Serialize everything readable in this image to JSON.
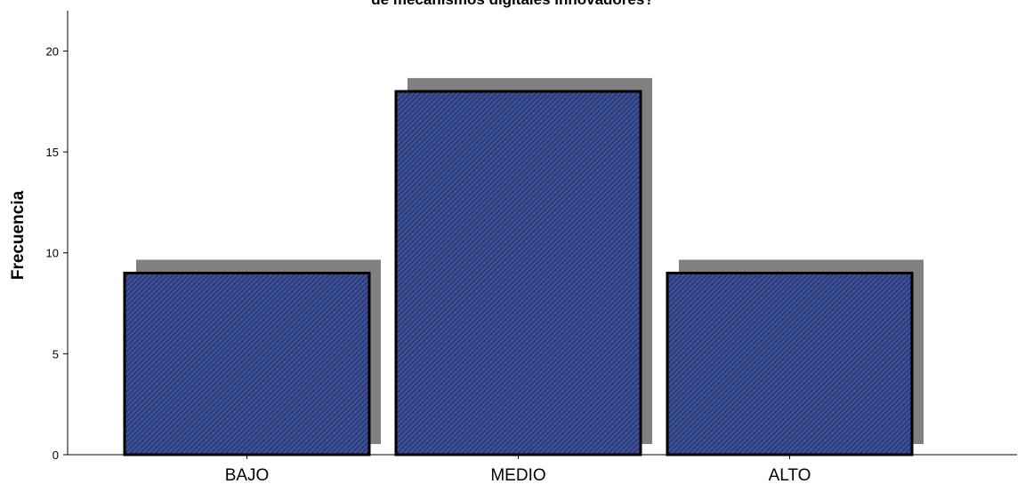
{
  "chart_data": {
    "type": "bar",
    "title": "de mecanismos digitales innovadores?",
    "xlabel": "",
    "ylabel": "Frecuencia",
    "categories": [
      "BAJO",
      "MEDIO",
      "ALTO"
    ],
    "values": [
      9,
      18,
      9
    ],
    "ylim": [
      0,
      22
    ],
    "yticks": [
      "0",
      "5",
      "10",
      "15",
      "20"
    ],
    "grid": false,
    "legend": "none",
    "colors": {
      "bar_fill": "#3b4f96",
      "hatch": "#1c2450",
      "bar_outline": "#000000",
      "shadow": "#808080",
      "axis": "#000000"
    }
  }
}
